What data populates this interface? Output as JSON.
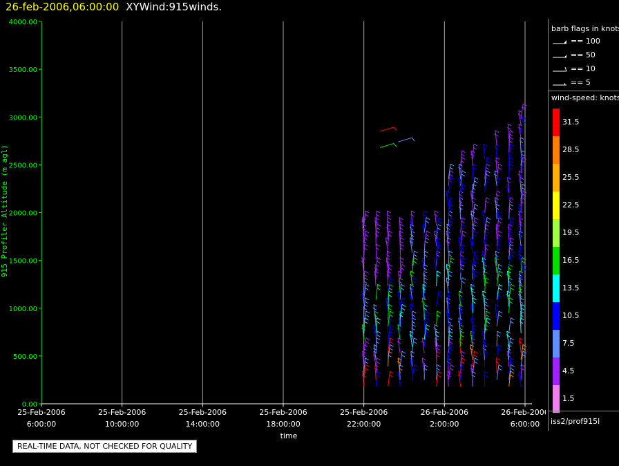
{
  "title": {
    "date": "26-feb-2006,06:00:00",
    "main": "XYWind:915winds."
  },
  "qc_note": "REAL-TIME DATA, NOT CHECKED FOR QUALITY",
  "legend": {
    "flags_title": "barb flags in knots",
    "flags": [
      {
        "label": "== 100"
      },
      {
        "label": "== 50"
      },
      {
        "label": "== 10"
      },
      {
        "label": "== 5"
      }
    ],
    "speed_title": "wind-speed: knots",
    "speed_bins": [
      {
        "label": "31.5",
        "color": "#ff0000"
      },
      {
        "label": "28.5",
        "color": "#ff8000"
      },
      {
        "label": "25.5",
        "color": "#ffb000"
      },
      {
        "label": "22.5",
        "color": "#ffff00"
      },
      {
        "label": "19.5",
        "color": "#a0ff40"
      },
      {
        "label": "16.5",
        "color": "#00e000"
      },
      {
        "label": "13.5",
        "color": "#00ffff"
      },
      {
        "label": "10.5",
        "color": "#0000ff"
      },
      {
        "label": "7.5",
        "color": "#6090ff"
      },
      {
        "label": "4.5",
        "color": "#a020ff"
      },
      {
        "label": "1.5",
        "color": "#f080f0"
      }
    ],
    "source": "iss2/prof915l"
  },
  "chart_data": {
    "type": "scatter",
    "title": "XYWind:915winds.",
    "ylabel": "915 Profiler Altitude (m agl)",
    "xlabel": "time",
    "ylim": [
      0,
      4000
    ],
    "yticks": [
      "0.00",
      "500.00",
      "1000.00",
      "1500.00",
      "2000.00",
      "2500.00",
      "3000.00",
      "3500.00",
      "4000.00"
    ],
    "xticks": [
      {
        "date": "25-Feb-2006",
        "time": "6:00:00"
      },
      {
        "date": "25-Feb-2006",
        "time": "10:00:00"
      },
      {
        "date": "25-Feb-2006",
        "time": "14:00:00"
      },
      {
        "date": "25-Feb-2006",
        "time": "18:00:00"
      },
      {
        "date": "25-Feb-2006",
        "time": "22:00:00"
      },
      {
        "date": "26-Feb-2006",
        "time": "2:00:00"
      },
      {
        "date": "26-Feb-2006",
        "time": "6:00:00"
      }
    ],
    "xlim_hours": [
      0,
      24
    ],
    "grid": "vertical",
    "barb_series": [
      {
        "name": "winds",
        "hours": [
          16.0,
          16.6,
          17.2,
          17.8,
          18.4,
          19.0,
          19.6,
          20.2,
          20.8,
          21.4,
          22.0,
          22.6,
          23.2,
          23.8
        ],
        "samples": "wind barbs 150–3150 m"
      }
    ]
  }
}
